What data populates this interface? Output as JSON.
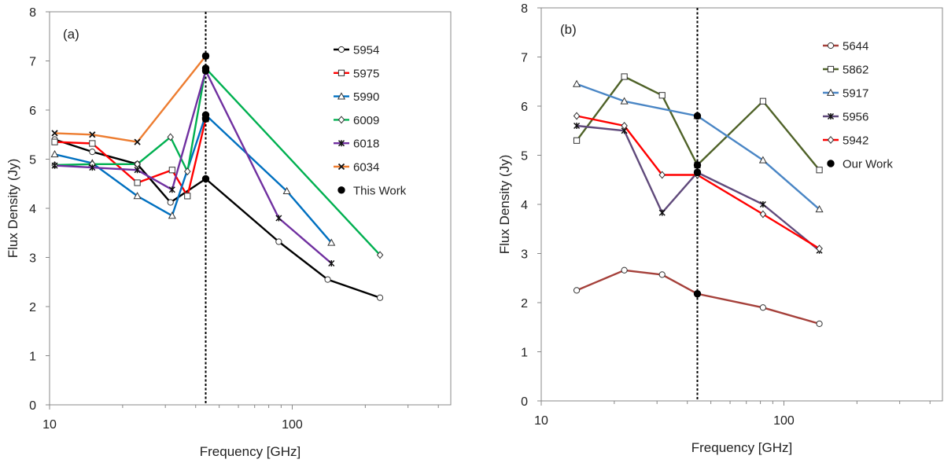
{
  "chart_data": [
    {
      "type": "line",
      "panel_label": "(a)",
      "xlabel": "Frequency [GHz]",
      "ylabel": "Flux Density (Jy)",
      "xscale": "log",
      "xlim": [
        10,
        450
      ],
      "ylim": [
        0,
        8
      ],
      "yticks": [
        0,
        1,
        2,
        3,
        4,
        5,
        6,
        7,
        8
      ],
      "xticks": [
        10,
        100
      ],
      "vline_x": 44,
      "legend_position": "top-right",
      "series": [
        {
          "name": "5954",
          "color": "#000000",
          "marker": "circle",
          "x": [
            10.5,
            15,
            23,
            31.5,
            44,
            88,
            140,
            230
          ],
          "y": [
            5.4,
            5.15,
            4.9,
            4.12,
            4.6,
            3.32,
            2.55,
            2.18
          ]
        },
        {
          "name": "5975",
          "color": "#ff0000",
          "marker": "square",
          "x": [
            10.5,
            15,
            23,
            32,
            37,
            44
          ],
          "y": [
            5.35,
            5.32,
            4.52,
            4.78,
            4.25,
            5.82
          ]
        },
        {
          "name": "5990",
          "color": "#0070c0",
          "marker": "triangle",
          "x": [
            10.5,
            15,
            23,
            32,
            44,
            95,
            145
          ],
          "y": [
            5.1,
            4.92,
            4.25,
            3.85,
            5.9,
            4.35,
            3.3
          ]
        },
        {
          "name": "6009",
          "color": "#00b050",
          "marker": "diamond",
          "x": [
            10.5,
            15,
            23,
            31.5,
            37,
            44,
            230
          ],
          "y": [
            4.88,
            4.9,
            4.9,
            5.45,
            4.75,
            6.85,
            3.05
          ]
        },
        {
          "name": "6018",
          "color": "#7030a0",
          "marker": "star",
          "x": [
            10.5,
            15,
            23,
            32,
            44,
            88,
            145
          ],
          "y": [
            4.87,
            4.83,
            4.78,
            4.38,
            6.8,
            3.8,
            2.88
          ]
        },
        {
          "name": "6034",
          "color": "#ed7d31",
          "marker": "x",
          "x": [
            10.5,
            15,
            23,
            44
          ],
          "y": [
            5.53,
            5.5,
            5.35,
            7.1
          ]
        }
      ],
      "highlight": {
        "name": "This Work",
        "color": "#000000",
        "x": [
          44,
          44,
          44,
          44,
          44,
          44
        ],
        "y": [
          7.1,
          6.85,
          6.8,
          5.9,
          5.82,
          4.6
        ]
      }
    },
    {
      "type": "line",
      "panel_label": "(b)",
      "xlabel": "Frequency [GHz]",
      "ylabel": "Flux Density (Jy)",
      "xscale": "log",
      "xlim": [
        10,
        450
      ],
      "ylim": [
        0,
        8
      ],
      "yticks": [
        0,
        1,
        2,
        3,
        4,
        5,
        6,
        7,
        8
      ],
      "xticks": [
        10,
        100
      ],
      "vline_x": 44,
      "legend_position": "top-right",
      "series": [
        {
          "name": "5644",
          "color": "#a5403a",
          "marker": "circle",
          "x": [
            14,
            22,
            31.5,
            44,
            82,
            140
          ],
          "y": [
            2.25,
            2.66,
            2.57,
            2.18,
            1.9,
            1.57
          ]
        },
        {
          "name": "5862",
          "color": "#4f6228",
          "marker": "square",
          "x": [
            14,
            22,
            31.5,
            44,
            82,
            140
          ],
          "y": [
            5.3,
            6.6,
            6.22,
            4.8,
            6.1,
            4.7
          ]
        },
        {
          "name": "5917",
          "color": "#4a86c5",
          "marker": "triangle",
          "x": [
            14,
            22,
            44,
            82,
            140
          ],
          "y": [
            6.45,
            6.1,
            5.8,
            4.9,
            3.9
          ]
        },
        {
          "name": "5956",
          "color": "#604a7b",
          "marker": "star",
          "x": [
            14,
            22,
            31.5,
            44,
            82,
            140
          ],
          "y": [
            5.6,
            5.5,
            3.83,
            4.65,
            4.0,
            3.06
          ]
        },
        {
          "name": "5942",
          "color": "#ff0000",
          "marker": "diamond",
          "x": [
            14,
            22,
            31.5,
            44,
            82,
            140
          ],
          "y": [
            5.8,
            5.6,
            4.6,
            4.6,
            3.8,
            3.1
          ]
        }
      ],
      "highlight": {
        "name": "Our Work",
        "color": "#000000",
        "x": [
          44,
          44,
          44,
          44
        ],
        "y": [
          5.8,
          4.8,
          4.65,
          2.18
        ]
      }
    }
  ]
}
